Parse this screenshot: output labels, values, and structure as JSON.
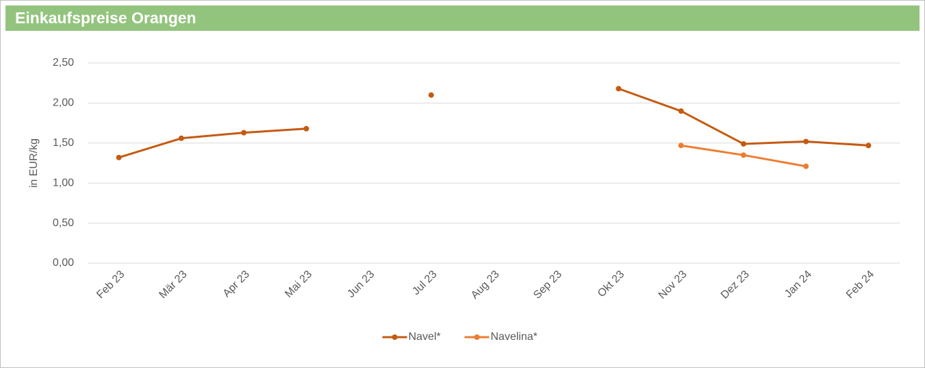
{
  "chart_data": {
    "type": "line",
    "title": "Einkaufspreise Orangen",
    "y_label": "in EUR/kg",
    "categories": [
      "Feb 23",
      "Mär 23",
      "Apr 23",
      "Mai 23",
      "Jun 23",
      "Jul 23",
      "Aug 23",
      "Sep 23",
      "Okt 23",
      "Nov 23",
      "Dez 23",
      "Jan 24",
      "Feb 24"
    ],
    "series": [
      {
        "name": "Navel*",
        "color": "#c55a11",
        "values": [
          1.32,
          1.56,
          1.63,
          1.68,
          null,
          2.1,
          null,
          null,
          2.18,
          1.9,
          1.49,
          1.52,
          1.47
        ]
      },
      {
        "name": "Navelina*",
        "color": "#ed7d31",
        "values": [
          null,
          null,
          null,
          null,
          null,
          null,
          null,
          null,
          null,
          1.47,
          1.35,
          1.21,
          null
        ]
      }
    ],
    "ylim": [
      0,
      2.5
    ],
    "yticks": [
      {
        "value": 0,
        "label": "0,00"
      },
      {
        "value": 0.5,
        "label": "0,50"
      },
      {
        "value": 1,
        "label": "1,00"
      },
      {
        "value": 1.5,
        "label": "1,50"
      },
      {
        "value": 2,
        "label": "2,00"
      },
      {
        "value": 2.5,
        "label": "2,50"
      }
    ],
    "grid": true,
    "legend": "bottom",
    "header_color": "#93c47d"
  }
}
